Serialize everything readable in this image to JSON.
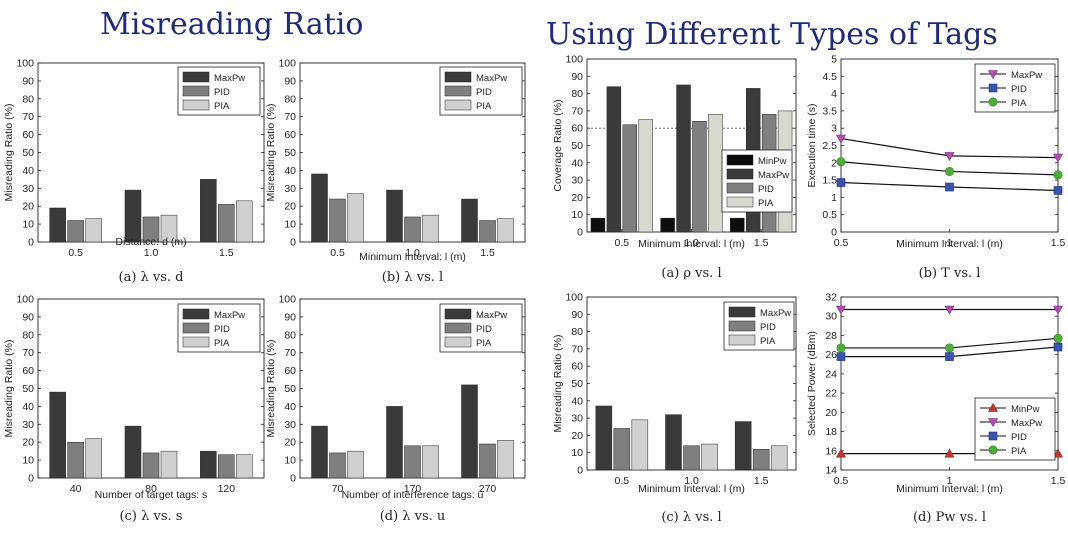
{
  "slide": {
    "title_left": "Misreading Ratio",
    "title_right": "Using Different Types of Tags"
  },
  "captions": [
    "(a) λ vs. d",
    "(b) λ vs. l",
    "(c) λ vs. s",
    "(d) λ vs. u",
    "(a) ρ vs. l",
    "(b) T vs. l",
    "(c) λ vs. l",
    "(d) Pw vs. l"
  ],
  "chart_data": [
    {
      "type": "bar",
      "caption": "(a) λ vs. d",
      "xlabel": "Distance: d (m)",
      "ylabel": "Misreading Ratio (%)",
      "categories": [
        "0.5",
        "1.0",
        "1.5"
      ],
      "ylim": [
        0,
        100
      ],
      "yticks": [
        0,
        10,
        20,
        30,
        40,
        50,
        60,
        70,
        80,
        90,
        100
      ],
      "legend_position": "top-right",
      "series": [
        {
          "name": "MaxPw",
          "color": "#3a3a3a",
          "values": [
            19,
            29,
            35
          ]
        },
        {
          "name": "PID",
          "color": "#7f7f7f",
          "values": [
            12,
            14,
            21
          ]
        },
        {
          "name": "PIA",
          "color": "#d0d0d0",
          "values": [
            13,
            15,
            23
          ]
        }
      ]
    },
    {
      "type": "bar",
      "caption": "(b) λ vs. l",
      "xlabel": "Minimum Interval: l (m)",
      "ylabel": "Misreading Ratio (%)",
      "categories": [
        "0.5",
        "1.0",
        "1.5"
      ],
      "ylim": [
        0,
        100
      ],
      "yticks": [
        0,
        10,
        20,
        30,
        40,
        50,
        60,
        70,
        80,
        90,
        100
      ],
      "legend_position": "top-right",
      "series": [
        {
          "name": "MaxPw",
          "color": "#3a3a3a",
          "values": [
            38,
            29,
            24
          ]
        },
        {
          "name": "PID",
          "color": "#7f7f7f",
          "values": [
            24,
            14,
            12
          ]
        },
        {
          "name": "PIA",
          "color": "#d0d0d0",
          "values": [
            27,
            15,
            13
          ]
        }
      ]
    },
    {
      "type": "bar",
      "caption": "(c) λ vs. s",
      "xlabel": "Number of target tags: s",
      "ylabel": "Misreading Ratio (%)",
      "categories": [
        "40",
        "80",
        "120"
      ],
      "ylim": [
        0,
        100
      ],
      "yticks": [
        0,
        10,
        20,
        30,
        40,
        50,
        60,
        70,
        80,
        90,
        100
      ],
      "legend_position": "top-right",
      "series": [
        {
          "name": "MaxPw",
          "color": "#3a3a3a",
          "values": [
            48,
            29,
            15
          ]
        },
        {
          "name": "PID",
          "color": "#7f7f7f",
          "values": [
            20,
            14,
            13
          ]
        },
        {
          "name": "PIA",
          "color": "#d0d0d0",
          "values": [
            22,
            15,
            13
          ]
        }
      ]
    },
    {
      "type": "bar",
      "caption": "(d) λ vs. u",
      "xlabel": "Number of interference tags: u",
      "ylabel": "Misreading Ratio (%)",
      "categories": [
        "70",
        "170",
        "270"
      ],
      "ylim": [
        0,
        100
      ],
      "yticks": [
        0,
        10,
        20,
        30,
        40,
        50,
        60,
        70,
        80,
        90,
        100
      ],
      "legend_position": "top-right",
      "series": [
        {
          "name": "MaxPw",
          "color": "#3a3a3a",
          "values": [
            29,
            40,
            52
          ]
        },
        {
          "name": "PID",
          "color": "#7f7f7f",
          "values": [
            14,
            18,
            19
          ]
        },
        {
          "name": "PIA",
          "color": "#d0d0d0",
          "values": [
            15,
            18,
            21
          ]
        }
      ]
    },
    {
      "type": "bar",
      "caption": "(a) ρ vs. l",
      "xlabel": "Minimum Interval: l (m)",
      "ylabel": "Coverage Ratio (%)",
      "categories": [
        "0.5",
        "1.0",
        "1.5"
      ],
      "ylim": [
        0,
        100
      ],
      "yticks": [
        0,
        10,
        20,
        30,
        40,
        50,
        60,
        70,
        80,
        90,
        100
      ],
      "reference_line": 60,
      "legend_position": "right",
      "series": [
        {
          "name": "MinPw",
          "color": "#0d0d0d",
          "values": [
            8,
            8,
            8
          ]
        },
        {
          "name": "MaxPw",
          "color": "#3a3a3a",
          "values": [
            84,
            85,
            83
          ]
        },
        {
          "name": "PID",
          "color": "#7f7f7f",
          "values": [
            62,
            64,
            68
          ]
        },
        {
          "name": "PIA",
          "color": "#d8d8cf",
          "values": [
            65,
            68,
            70
          ]
        }
      ]
    },
    {
      "type": "line",
      "caption": "(b) T vs. l",
      "xlabel": "Minimum Interval: l (m)",
      "ylabel": "Execution time (s)",
      "x": [
        0.5,
        1.0,
        1.5
      ],
      "xticks": [
        "0.5",
        "1",
        "1.5"
      ],
      "xlim": [
        0.5,
        1.5
      ],
      "ylim": [
        0,
        5
      ],
      "yticks": [
        0,
        0.5,
        1,
        1.5,
        2,
        2.5,
        3,
        3.5,
        4,
        4.5,
        5
      ],
      "ytick_labels": [
        "0",
        "0.5",
        "1",
        "1.5",
        "2",
        "2.5",
        "3",
        "3.5",
        "4",
        "4.5",
        "5"
      ],
      "legend_position": "top-right",
      "series": [
        {
          "name": "MaxPw",
          "color": "#b04fb0",
          "marker": "triangle-down",
          "values": [
            2.7,
            2.2,
            2.15
          ]
        },
        {
          "name": "PID",
          "color": "#3a52b0",
          "marker": "square",
          "values": [
            1.43,
            1.3,
            1.2
          ]
        },
        {
          "name": "PIA",
          "color": "#4caf3a",
          "marker": "circle",
          "values": [
            2.03,
            1.75,
            1.65
          ]
        }
      ]
    },
    {
      "type": "bar",
      "caption": "(c) λ vs. l",
      "xlabel": "Minimum Interval: l (m)",
      "ylabel": "Misreading Ratio (%)",
      "categories": [
        "0.5",
        "1.0",
        "1.5"
      ],
      "ylim": [
        0,
        100
      ],
      "yticks": [
        0,
        10,
        20,
        30,
        40,
        50,
        60,
        70,
        80,
        90,
        100
      ],
      "legend_position": "top-right",
      "series": [
        {
          "name": "MaxPw",
          "color": "#3a3a3a",
          "values": [
            37,
            32,
            28
          ]
        },
        {
          "name": "PID",
          "color": "#7f7f7f",
          "values": [
            24,
            14,
            12
          ]
        },
        {
          "name": "PIA",
          "color": "#d0d0d0",
          "values": [
            29,
            15,
            14
          ]
        }
      ]
    },
    {
      "type": "line",
      "caption": "(d) Pw vs. l",
      "xlabel": "Minimum Interval: l (m)",
      "ylabel": "Selected Power (dBm)",
      "x": [
        0.5,
        1.0,
        1.5
      ],
      "xticks": [
        "0.5",
        "1",
        "1.5"
      ],
      "xlim": [
        0.5,
        1.5
      ],
      "ylim": [
        14,
        32
      ],
      "yticks": [
        14,
        16,
        18,
        20,
        22,
        24,
        26,
        28,
        30,
        32
      ],
      "ytick_labels": [
        "14",
        "16",
        "18",
        "20",
        "22",
        "24",
        "26",
        "28",
        "30",
        "32"
      ],
      "legend_position": "bottom-right",
      "series": [
        {
          "name": "MinPw",
          "color": "#c0392b",
          "marker": "triangle-up",
          "values": [
            15.7,
            15.7,
            15.7
          ]
        },
        {
          "name": "MaxPw",
          "color": "#b04fb0",
          "marker": "triangle-down",
          "values": [
            30.7,
            30.7,
            30.7
          ]
        },
        {
          "name": "PID",
          "color": "#3a52b0",
          "marker": "square",
          "values": [
            25.8,
            25.8,
            26.8
          ]
        },
        {
          "name": "PIA",
          "color": "#4caf3a",
          "marker": "circle",
          "values": [
            26.7,
            26.7,
            27.7
          ]
        }
      ]
    }
  ]
}
